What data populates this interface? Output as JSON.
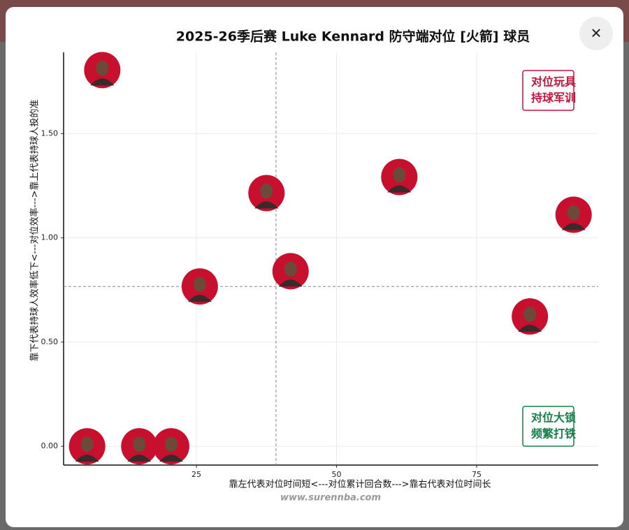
{
  "close_button": "✕",
  "chart_data": {
    "type": "scatter",
    "title": "2025-26季后赛 Luke Kennard 防守端对位 [火箭] 球员",
    "x_label": "靠左代表对位时间短<---对位累计回合数--->靠右代表对位时间长",
    "y_label": "靠下代表持球人效率低下<---对位效率--->靠上代表持球人投的准",
    "x": [
      8.2,
      37.5,
      61.2,
      92.3,
      41.8,
      25.6,
      84.5,
      5.5,
      14.8,
      20.5
    ],
    "values": [
      1.805,
      1.215,
      1.292,
      1.111,
      0.84,
      0.767,
      0.623,
      0,
      0,
      0
    ],
    "color": "#c8102e",
    "xlim": [
      1.3,
      96.7
    ],
    "xticks": [
      25,
      50,
      75
    ],
    "ylim": [
      -0.09,
      1.89
    ],
    "yticks": [
      {
        "value": 0,
        "label": "0.00"
      },
      {
        "value": 0.5,
        "label": "0.50"
      },
      {
        "value": 1,
        "label": "1.00"
      },
      {
        "value": 1.5,
        "label": "1.50"
      }
    ],
    "grid": true,
    "x_ref": 39.2,
    "y_ref": 0.767,
    "annotations": [
      {
        "lines": [
          "对位玩具",
          "持球军训"
        ],
        "color": "#c0143c",
        "corner": "upper right"
      },
      {
        "lines": [
          "对位大锁",
          "频繁打铁"
        ],
        "color": "#14804a",
        "corner": "lower right"
      }
    ],
    "watermark": "www.surennba.com"
  }
}
